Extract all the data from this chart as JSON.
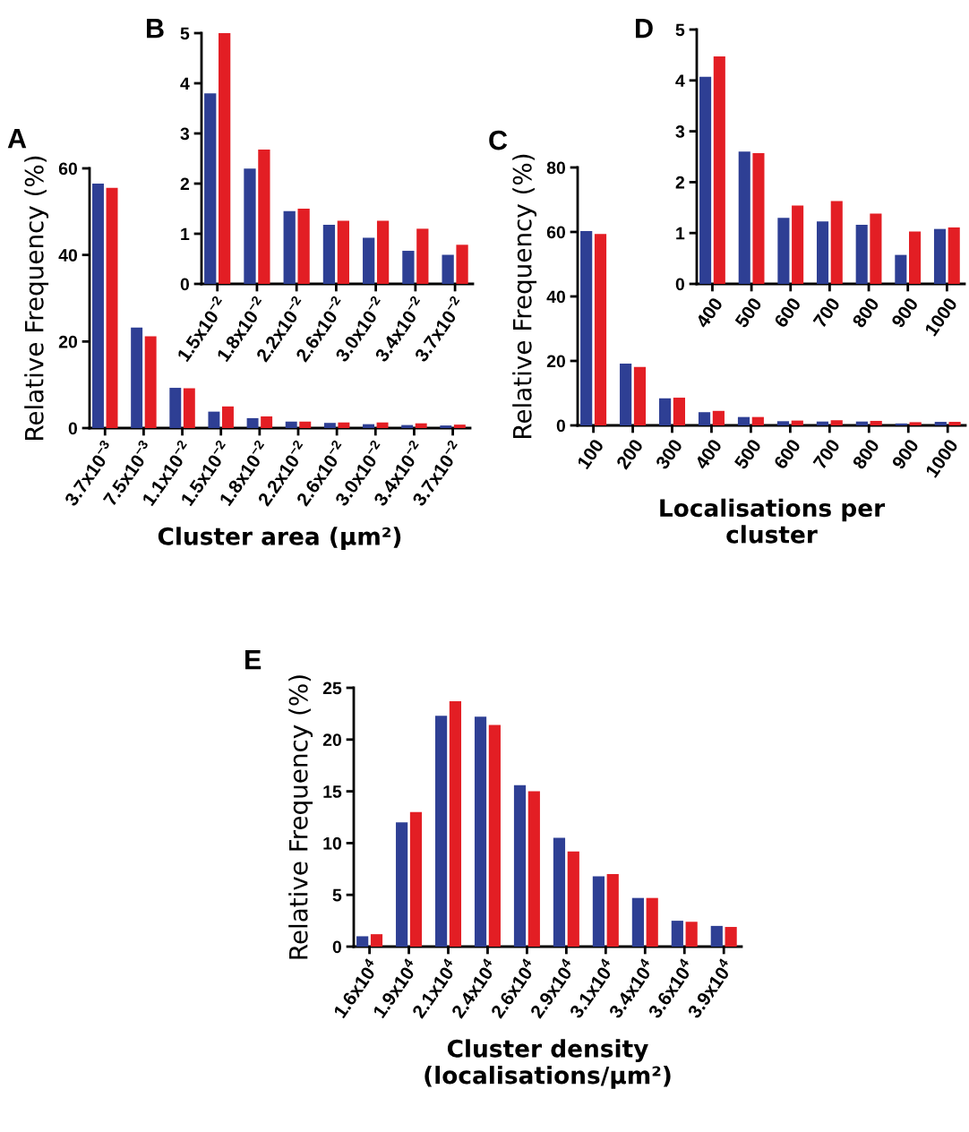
{
  "chart_data": [
    {
      "type": "bar",
      "title": "A",
      "ylabel": "Relative Frequency (%)",
      "xlabel": "Cluster area (μm²)",
      "categories": [
        "3.7x10$^{−3}$",
        "7.5x10$^{−3}$",
        "1.1x10$^{−2}$",
        "1.5x10$^{−2}$",
        "1.8x10$^{−2}$",
        "2.2x10$^{−2}$",
        "2.6x10$^{−2}$",
        "3.0x10$^{−2}$",
        "3.4x10$^{−2}$",
        "3.7x10$^{−2}$"
      ],
      "ylim": [
        0,
        60
      ],
      "yticks": [
        0,
        20,
        40,
        60
      ],
      "series": [
        {
          "color": "#2e3f94",
          "values": [
            56.5,
            23.2,
            9.3,
            3.8,
            2.3,
            1.5,
            1.2,
            0.9,
            0.7,
            0.6
          ]
        },
        {
          "color": "#e31e24",
          "values": [
            55.5,
            21.2,
            9.2,
            5.0,
            2.7,
            1.5,
            1.3,
            1.3,
            1.1,
            0.8
          ]
        }
      ]
    },
    {
      "type": "bar",
      "title": "B",
      "categories": [
        "1.5x10$^{−2}$",
        "1.8x10$^{−2}$",
        "2.2x10$^{−2}$",
        "2.6x10$^{−2}$",
        "3.0x10$^{−2}$",
        "3.4x10$^{−2}$",
        "3.7x10$^{−2}$"
      ],
      "ylim": [
        0,
        5
      ],
      "yticks": [
        0,
        1,
        2,
        3,
        4,
        5
      ],
      "series": [
        {
          "color": "#2e3f94",
          "values": [
            3.8,
            2.3,
            1.45,
            1.18,
            0.92,
            0.66,
            0.58
          ]
        },
        {
          "color": "#e31e24",
          "values": [
            5.0,
            2.68,
            1.5,
            1.26,
            1.26,
            1.1,
            0.78
          ]
        }
      ]
    },
    {
      "type": "bar",
      "title": "C",
      "ylabel": "Relative Frequency (%)",
      "xlabel": "Localisations per\ncluster",
      "categories": [
        "100",
        "200",
        "300",
        "400",
        "500",
        "600",
        "700",
        "800",
        "900",
        "1000"
      ],
      "ylim": [
        0,
        80
      ],
      "yticks": [
        0,
        20,
        40,
        60,
        80
      ],
      "series": [
        {
          "color": "#2e3f94",
          "values": [
            60.3,
            19.2,
            8.4,
            4.1,
            2.6,
            1.3,
            1.2,
            1.2,
            0.6,
            1.1
          ]
        },
        {
          "color": "#e31e24",
          "values": [
            59.4,
            18.1,
            8.6,
            4.5,
            2.6,
            1.5,
            1.6,
            1.4,
            1.0,
            1.1
          ]
        }
      ]
    },
    {
      "type": "bar",
      "title": "D",
      "categories": [
        "400",
        "500",
        "600",
        "700",
        "800",
        "900",
        "1000"
      ],
      "ylim": [
        0,
        5
      ],
      "yticks": [
        0,
        1,
        2,
        3,
        4,
        5
      ],
      "series": [
        {
          "color": "#2e3f94",
          "values": [
            4.07,
            2.6,
            1.3,
            1.23,
            1.16,
            0.57,
            1.08
          ]
        },
        {
          "color": "#e31e24",
          "values": [
            4.47,
            2.57,
            1.54,
            1.63,
            1.38,
            1.03,
            1.11
          ]
        }
      ]
    },
    {
      "type": "bar",
      "title": "E",
      "ylabel": "Relative Frequency (%)",
      "xlabel": "Cluster density\n(localisations/μm²)",
      "categories": [
        "1.6x10$^{4}$",
        "1.9x10$^{4}$",
        "2.1x10$^{4}$",
        "2.4x10$^{4}$",
        "2.6x10$^{4}$",
        "2.9x10$^{4}$",
        "3.1x10$^{4}$",
        "3.4x10$^{4}$",
        "3.6x10$^{4}$",
        "3.9x10$^{4}$"
      ],
      "ylim": [
        0,
        25
      ],
      "yticks": [
        0,
        5,
        10,
        15,
        20,
        25
      ],
      "series": [
        {
          "color": "#2e3f94",
          "values": [
            1.0,
            12.0,
            22.3,
            22.2,
            15.6,
            10.5,
            6.8,
            4.7,
            2.5,
            2.0
          ]
        },
        {
          "color": "#e31e24",
          "values": [
            1.2,
            13.0,
            23.7,
            21.4,
            15.0,
            9.2,
            7.0,
            4.7,
            2.4,
            1.9
          ]
        }
      ]
    }
  ]
}
